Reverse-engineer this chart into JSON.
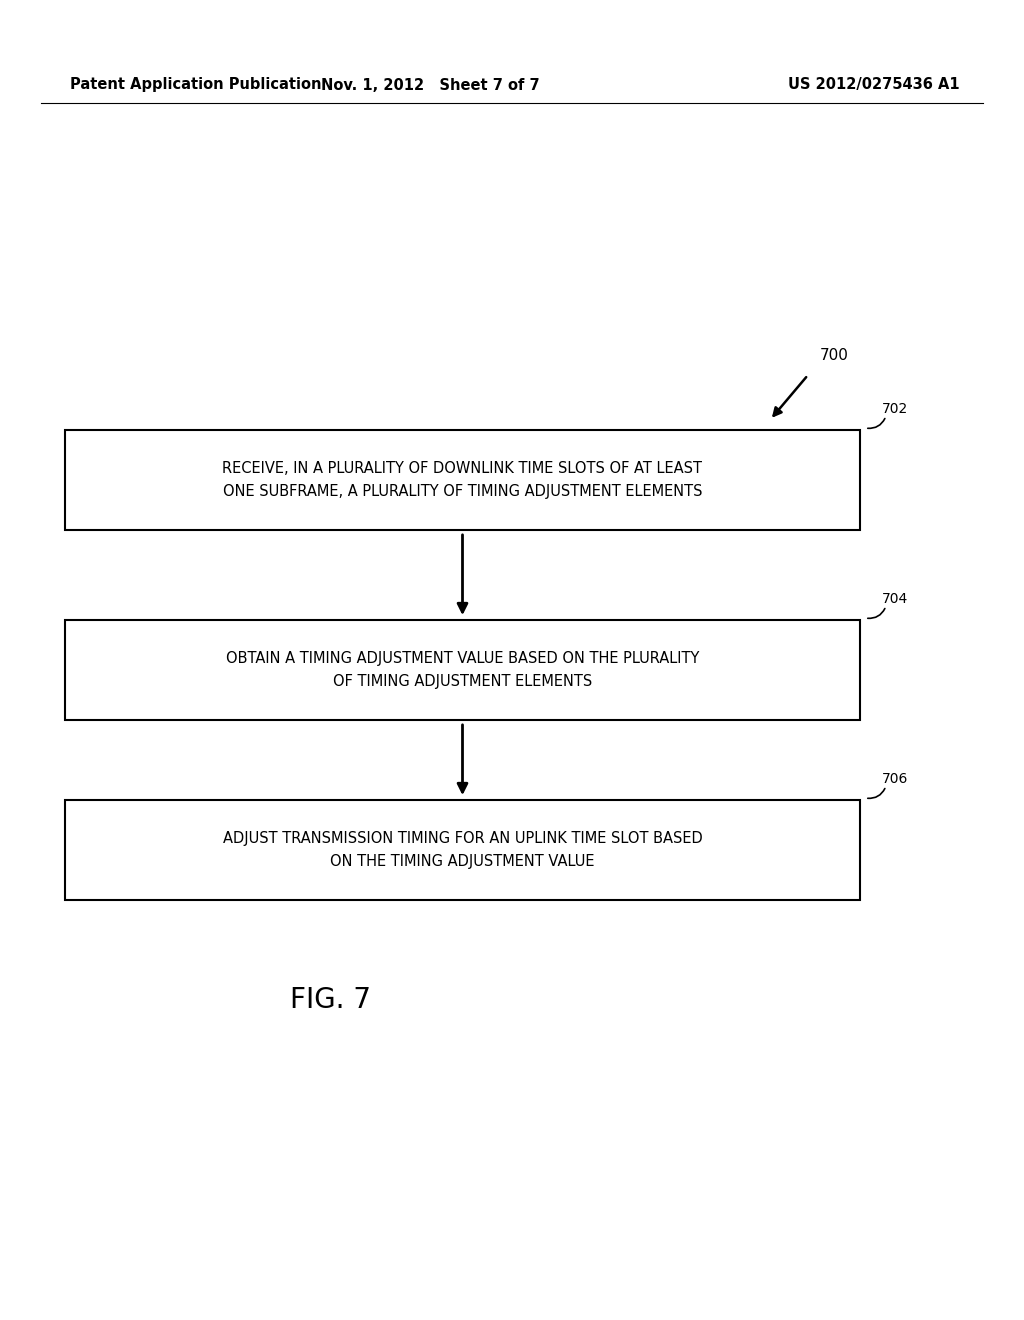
{
  "background_color": "#ffffff",
  "header_left": "Patent Application Publication",
  "header_center": "Nov. 1, 2012   Sheet 7 of 7",
  "header_right": "US 2012/0275436 A1",
  "fig_label": "700",
  "boxes": [
    {
      "id": "702",
      "label": "702",
      "text": "RECEIVE, IN A PLURALITY OF DOWNLINK TIME SLOTS OF AT LEAST\nONE SUBFRAME, A PLURALITY OF TIMING ADJUSTMENT ELEMENTS"
    },
    {
      "id": "704",
      "label": "704",
      "text": "OBTAIN A TIMING ADJUSTMENT VALUE BASED ON THE PLURALITY\nOF TIMING ADJUSTMENT ELEMENTS"
    },
    {
      "id": "706",
      "label": "706",
      "text": "ADJUST TRANSMISSION TIMING FOR AN UPLINK TIME SLOT BASED\nON THE TIMING ADJUSTMENT VALUE"
    }
  ],
  "fig_caption": "FIG. 7"
}
